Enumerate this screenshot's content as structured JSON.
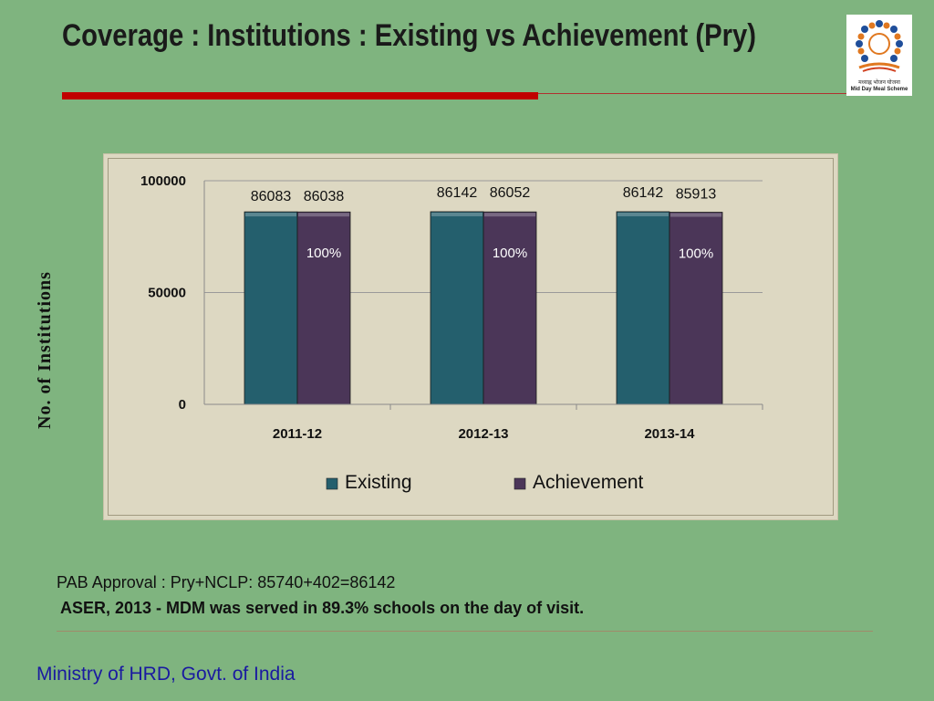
{
  "slide": {
    "title": "Coverage : Institutions : Existing vs Achievement (Pry)",
    "ylabel": "No. of Institutions",
    "notes": [
      "PAB Approval : Pry+NCLP: 85740+402=86142",
      "ASER, 2013 -  MDM was served in 89.3% schools on the day of visit."
    ],
    "footer": "Ministry of HRD, Govt. of India",
    "logo_caption_hindi": "मध्याह्न भोजन योजना",
    "logo_caption": "Mid Day Meal Scheme"
  },
  "colors": {
    "background": "#7fb47f",
    "existing": "#245f6d",
    "achievement": "#4b3658",
    "title_rule": "#c00000",
    "footer_text": "#1a1aa0"
  },
  "chart_data": {
    "type": "bar",
    "categories": [
      "2011-12",
      "2012-13",
      "2013-14"
    ],
    "series": [
      {
        "name": "Existing",
        "values": [
          86083,
          86142,
          86142
        ]
      },
      {
        "name": "Achievement",
        "values": [
          86038,
          86052,
          85913
        ]
      }
    ],
    "annotations": [
      "100%",
      "100%",
      "100%"
    ],
    "yticks": [
      "0",
      "50000",
      "100000"
    ],
    "ylim": [
      0,
      100000
    ],
    "grid": true,
    "legend": "bottom"
  }
}
